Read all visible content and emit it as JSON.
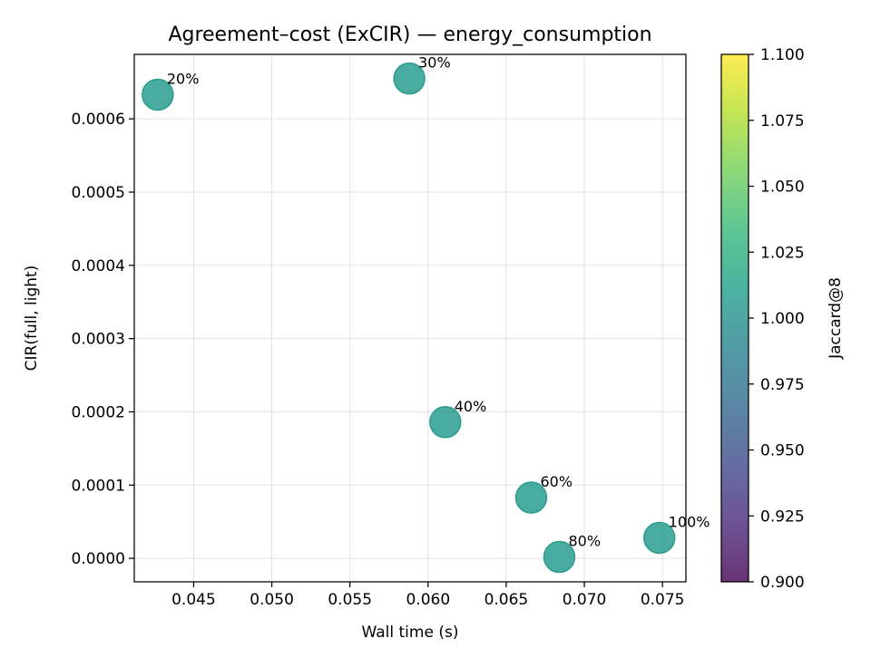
{
  "chart_data": {
    "type": "scatter",
    "title": "Agreement–cost (ExCIR) — energy_consumption",
    "xlabel": "Wall time (s)",
    "ylabel": "CIR(full, light)",
    "xlim": [
      0.0412,
      0.0765
    ],
    "ylim": [
      -3.2e-05,
      0.000688
    ],
    "xticks": [
      "0.045",
      "0.050",
      "0.055",
      "0.060",
      "0.065",
      "0.070",
      "0.075"
    ],
    "xtick_values": [
      0.045,
      0.05,
      0.055,
      0.06,
      0.065,
      0.07,
      0.075
    ],
    "yticks": [
      "0.0000",
      "0.0001",
      "0.0002",
      "0.0003",
      "0.0004",
      "0.0005",
      "0.0006"
    ],
    "ytick_values": [
      0.0,
      0.0001,
      0.0002,
      0.0003,
      0.0004,
      0.0005,
      0.0006
    ],
    "grid": true,
    "points": [
      {
        "label": "20%",
        "x": 0.0427,
        "y": 0.000633,
        "color_value": 1.0
      },
      {
        "label": "30%",
        "x": 0.0588,
        "y": 0.000655,
        "color_value": 1.0
      },
      {
        "label": "40%",
        "x": 0.0611,
        "y": 0.000186,
        "color_value": 1.0
      },
      {
        "label": "60%",
        "x": 0.0666,
        "y": 8.3e-05,
        "color_value": 1.0
      },
      {
        "label": "80%",
        "x": 0.0684,
        "y": 2e-06,
        "color_value": 1.0
      },
      {
        "label": "100%",
        "x": 0.0748,
        "y": 2.8e-05,
        "color_value": 1.0
      }
    ],
    "marker_color": "#2a9d8f",
    "colorbar": {
      "label": "Jaccard@8",
      "range": [
        0.9,
        1.1
      ],
      "ticks": [
        "0.900",
        "0.925",
        "0.950",
        "0.975",
        "1.000",
        "1.025",
        "1.050",
        "1.075",
        "1.100"
      ],
      "tick_values": [
        0.9,
        0.925,
        0.95,
        0.975,
        1.0,
        1.025,
        1.05,
        1.075,
        1.1
      ],
      "colormap": "viridis",
      "colormap_stops": [
        "#440154",
        "#482878",
        "#3e4989",
        "#31688e",
        "#26828e",
        "#1f9e89",
        "#35b779",
        "#6ece58",
        "#b5de2b",
        "#fde725"
      ]
    }
  }
}
